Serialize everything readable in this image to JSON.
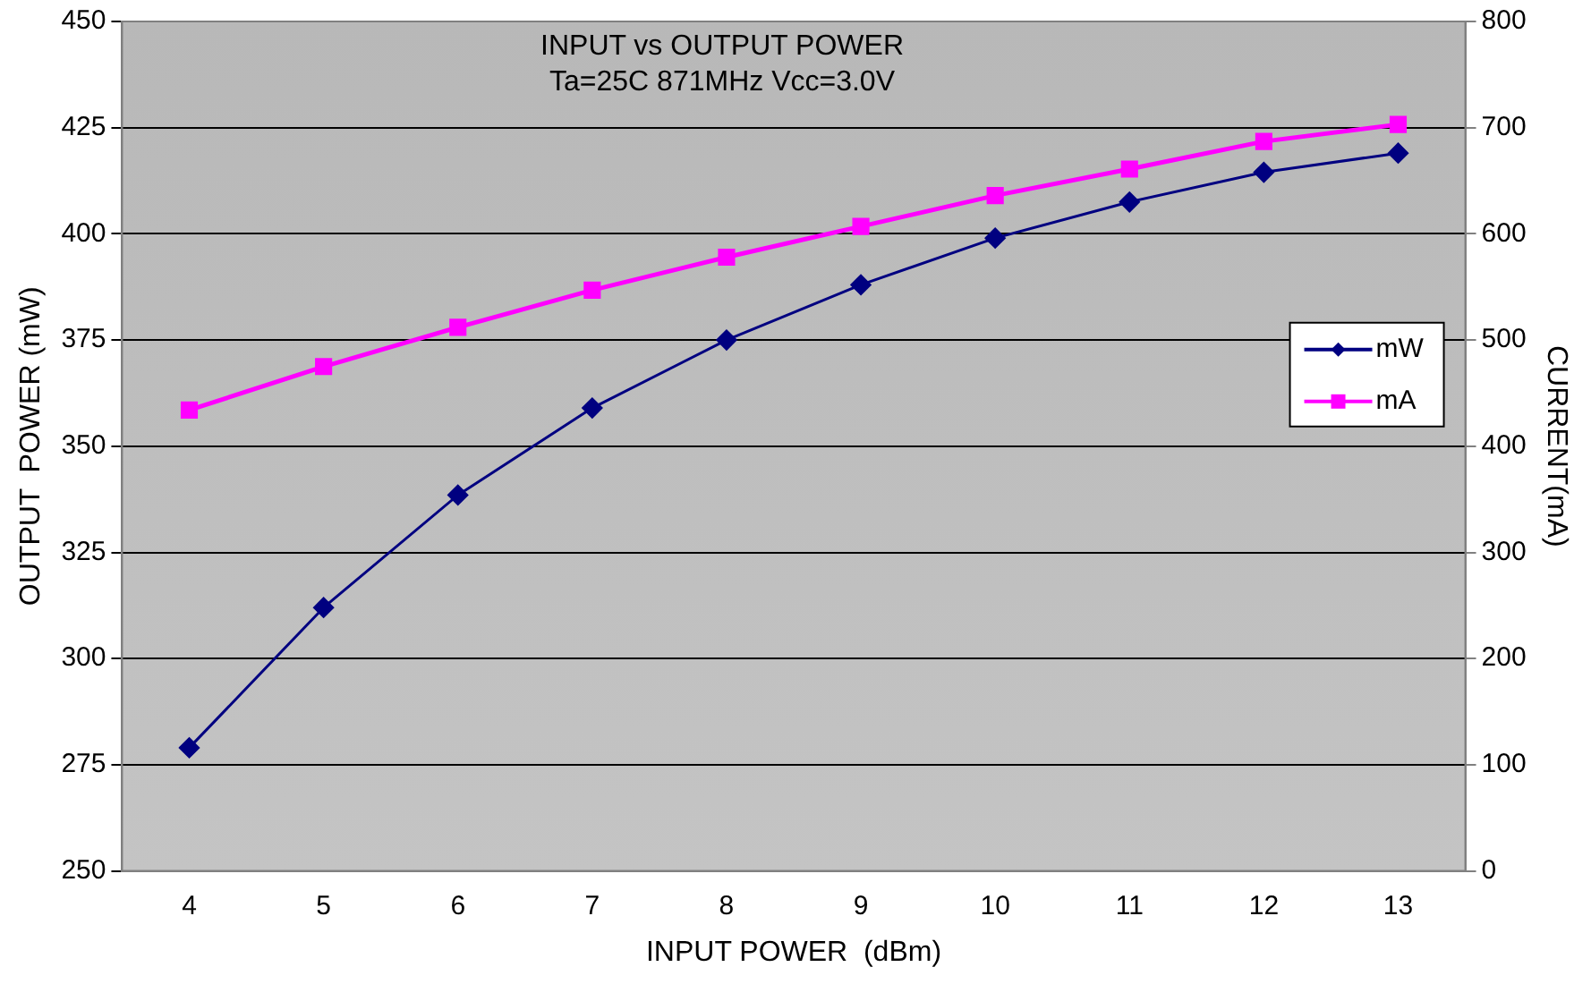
{
  "chart_data": {
    "type": "line",
    "title": "INPUT vs OUTPUT POWER",
    "subtitle": "Ta=25C 871MHz Vcc=3.0V",
    "xlabel": "INPUT POWER  (dBm)",
    "ylabel": "OUTPUT  POWER (mW)",
    "y2label": "CURRENT(mA)",
    "categories": [
      "4",
      "5",
      "6",
      "7",
      "8",
      "9",
      "10",
      "11",
      "12",
      "13"
    ],
    "series": [
      {
        "name": "mW",
        "color": "#000080",
        "marker": "diamond",
        "values": [
          279,
          312,
          338.5,
          359,
          375,
          388,
          399,
          407.5,
          414.5,
          419
        ]
      },
      {
        "name": "mA",
        "color": "#ff00ff",
        "marker": "square",
        "axis": "y2",
        "values": [
          434,
          475,
          512,
          547,
          578,
          607,
          636,
          661,
          687,
          703
        ]
      }
    ],
    "ylim": [
      250,
      450
    ],
    "yticks": [
      250,
      275,
      300,
      325,
      350,
      375,
      400,
      425,
      450
    ],
    "y2lim": [
      0,
      800
    ],
    "y2ticks": [
      0,
      100,
      200,
      300,
      400,
      500,
      600,
      700,
      800
    ],
    "grid": "y",
    "legend": "right"
  }
}
